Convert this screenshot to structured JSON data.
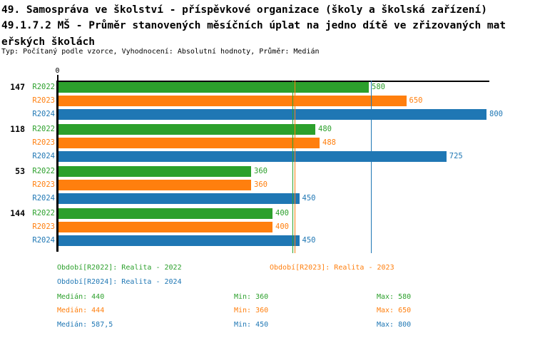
{
  "title": {
    "line1": "49. Samospráva ve školství - příspěvkové organizace (školy a školská zařízení)",
    "line2": "49.1.7.2 MŠ - Průměr stanovených měsíčních úplat na jedno dítě ve zřizovaných mat",
    "line3": "eřských školách",
    "subtitle": "Typ: Počítaný podle vzorce, Vyhodnocení: Absolutní hodnoty, Průměr: Medián"
  },
  "colors": {
    "r2022": "#2ca02c",
    "r2023": "#ff7f0e",
    "r2024": "#1f77b4",
    "axis": "#000000"
  },
  "chart_data": {
    "type": "bar",
    "orientation": "horizontal",
    "title": "49.1.7.2 MŠ - Průměr stanovených měsíčních úplat na jedno dítě ve zřizovaných mateřských školách",
    "axis_origin_label": "0",
    "xlim": [
      0,
      800
    ],
    "grid": false,
    "categories": [
      "147",
      "118",
      "53",
      "144"
    ],
    "series": [
      {
        "name": "R2022",
        "color": "#2ca02c",
        "values": [
          580,
          480,
          360,
          400
        ],
        "median": 440,
        "min": 360,
        "max": 580
      },
      {
        "name": "R2023",
        "color": "#ff7f0e",
        "values": [
          650,
          488,
          360,
          400
        ],
        "median": 444,
        "min": 360,
        "max": 650
      },
      {
        "name": "R2024",
        "color": "#1f77b4",
        "values": [
          800,
          725,
          450,
          450
        ],
        "median": 587.5,
        "min": 450,
        "max": 800
      }
    ],
    "median_lines_shown": true,
    "legend_position": "bottom"
  },
  "legend": {
    "r2022": "Období[R2022]: Realita - 2022",
    "r2023": "Období[R2023]: Realita - 2023",
    "r2024": "Období[R2024]: Realita - 2024"
  },
  "stats": {
    "rows": [
      {
        "series": "R2022",
        "median": "Medián: 440",
        "min": "Min: 360",
        "max": "Max: 580"
      },
      {
        "series": "R2023",
        "median": "Medián: 444",
        "min": "Min: 360",
        "max": "Max: 650"
      },
      {
        "series": "R2024",
        "median": "Medián: 587,5",
        "min": "Min: 450",
        "max": "Max: 800"
      }
    ]
  }
}
